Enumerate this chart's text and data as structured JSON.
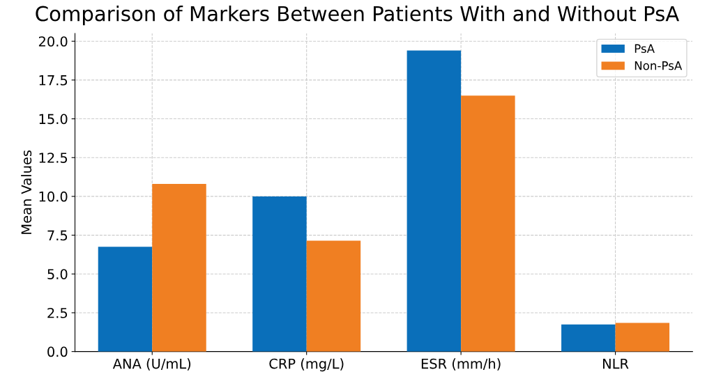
{
  "chart_data": {
    "type": "bar",
    "title": "Comparison of Markers Between Patients With and Without PsA",
    "ylabel": "Mean Values",
    "categories": [
      "ANA (U/mL)",
      "CRP (mg/L)",
      "ESR (mm/h)",
      "NLR"
    ],
    "series": [
      {
        "name": "PsA",
        "color": "#0a6fba",
        "values": [
          6.75,
          10.0,
          19.4,
          1.75
        ]
      },
      {
        "name": "Non-PsA",
        "color": "#f07f22",
        "values": [
          10.8,
          7.15,
          16.5,
          1.85
        ]
      }
    ],
    "ylim": [
      0,
      20.5
    ],
    "yticks": [
      {
        "value": 0,
        "label": "0.0"
      },
      {
        "value": 2.5,
        "label": "2.5"
      },
      {
        "value": 5,
        "label": "5.0"
      },
      {
        "value": 7.5,
        "label": "7.5"
      },
      {
        "value": 10,
        "label": "10.0"
      },
      {
        "value": 12.5,
        "label": "12.5"
      },
      {
        "value": 15,
        "label": "15.0"
      },
      {
        "value": 17.5,
        "label": "17.5"
      },
      {
        "value": 20,
        "label": "20.0"
      }
    ],
    "grid": true,
    "legend": "top right"
  }
}
